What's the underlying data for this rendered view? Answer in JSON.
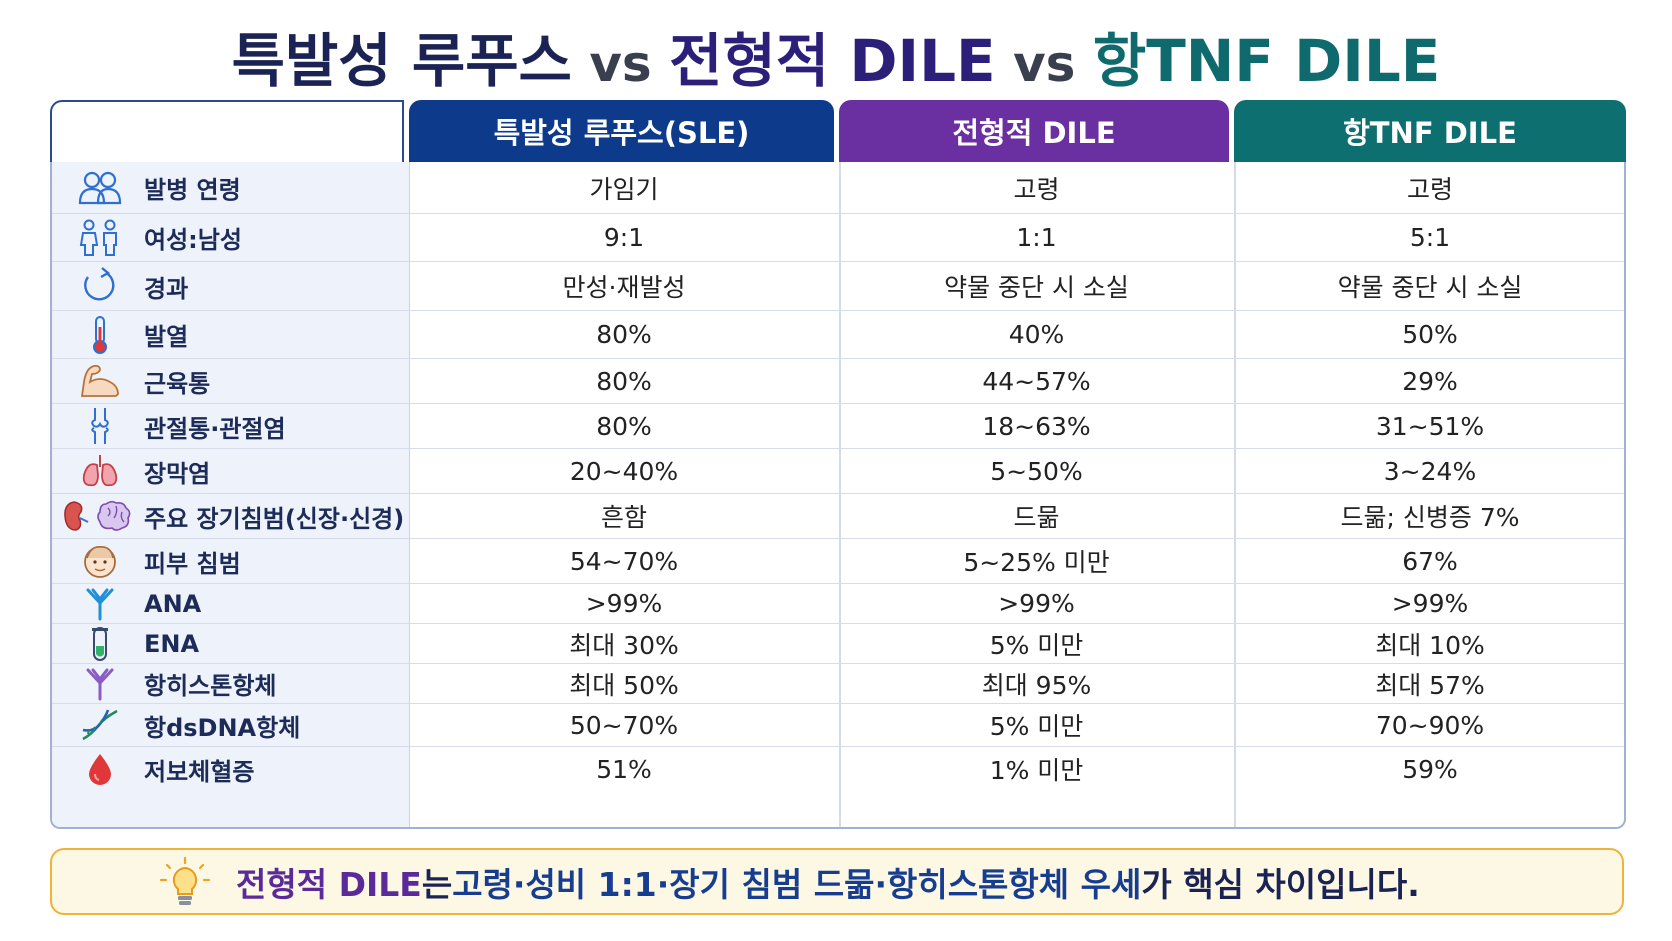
{
  "title": {
    "part1": "특발성 루푸스",
    "vs1": " vs ",
    "part2": "전형적 DILE",
    "vs2": " vs ",
    "part3": "항TNF DILE"
  },
  "colors": {
    "sle_header": "#0e3a8c",
    "dile_header": "#6a2fa0",
    "tnf_header": "#0d6f6f",
    "footer_border": "#f0b23a"
  },
  "table": {
    "headers": [
      "특발성 루푸스(SLE)",
      "전형적 DILE",
      "항TNF DILE"
    ],
    "rows": [
      {
        "icon": "people-icon",
        "label": "발병 연령",
        "sle": "가임기",
        "dile": "고령",
        "tnf": "고령"
      },
      {
        "icon": "female-male-icon",
        "label": "여성:남성",
        "sle": "9:1",
        "dile": "1:1",
        "tnf": "5:1"
      },
      {
        "icon": "cycle-arrow-icon",
        "label": "경과",
        "sle": "만성·재발성",
        "dile": "약물 중단 시 소실",
        "tnf": "약물 중단 시 소실"
      },
      {
        "icon": "thermometer-icon",
        "label": "발열",
        "sle": "80%",
        "dile": "40%",
        "tnf": "50%"
      },
      {
        "icon": "muscle-arm-icon",
        "label": "근육통",
        "sle": "80%",
        "dile": "44~57%",
        "tnf": "29%"
      },
      {
        "icon": "joint-icon",
        "label": "관절통·관절염",
        "sle": "80%",
        "dile": "18~63%",
        "tnf": "31~51%"
      },
      {
        "icon": "lungs-icon",
        "label": "장막염",
        "sle": "20~40%",
        "dile": "5~50%",
        "tnf": "3~24%"
      },
      {
        "icon": "kidney-brain-icon",
        "label": "주요 장기침범(신장·신경)",
        "sle": "흔함",
        "dile": "드묾",
        "tnf": "드묾; 신병증 7%"
      },
      {
        "icon": "face-icon",
        "label": "피부 침범",
        "sle": "54~70%",
        "dile": "5~25% 미만",
        "tnf": "67%"
      },
      {
        "icon": "antibody-icon",
        "label": "ANA",
        "sle": ">99%",
        "dile": ">99%",
        "tnf": ">99%"
      },
      {
        "icon": "test-tube-icon",
        "label": "ENA",
        "sle": "최대 30%",
        "dile": "5% 미만",
        "tnf": "최대 10%"
      },
      {
        "icon": "antibody-purple-icon",
        "label": "항히스톤항체",
        "sle": "최대 50%",
        "dile": "최대 95%",
        "tnf": "최대 57%"
      },
      {
        "icon": "dna-icon",
        "label": "항dsDNA항체",
        "sle": "50~70%",
        "dile": "5% 미만",
        "tnf": "70~90%"
      },
      {
        "icon": "blood-drop-icon",
        "label": "저보체혈증",
        "sle": "51%",
        "dile": "1% 미만",
        "tnf": "59%"
      }
    ]
  },
  "footer": {
    "highlight": "전형적 DILE",
    "mid1": "는 ",
    "emphasis": "고령·성비 1:1·장기 침범 드묾·항히스톤항체 우세",
    "end": "가 핵심 차이입니다."
  }
}
